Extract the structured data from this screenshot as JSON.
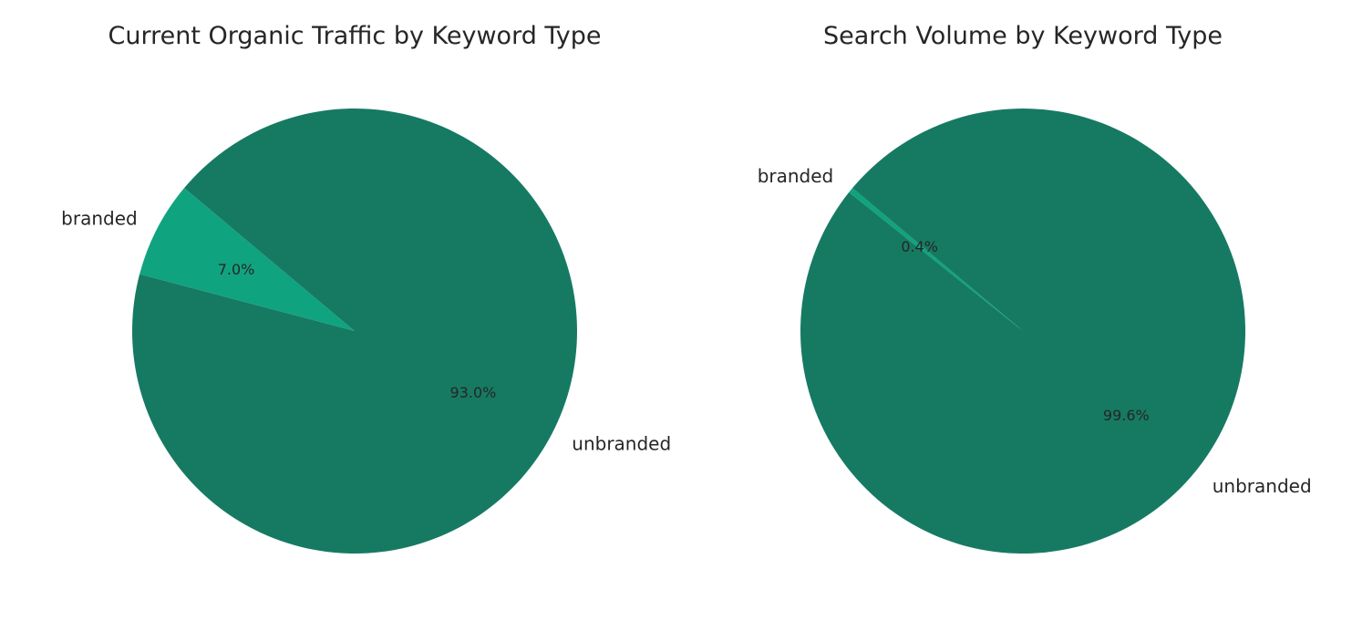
{
  "chart_data": [
    {
      "type": "pie",
      "title": "Current Organic Traffic by Keyword Type",
      "categories": [
        "branded",
        "unbranded"
      ],
      "values": [
        7.0,
        93.0
      ],
      "value_labels": [
        "7.0%",
        "93.0%"
      ],
      "colors": [
        "#10a37f",
        "#167a63"
      ],
      "start_angle_deg": 140,
      "counterclockwise": true,
      "legend": "none"
    },
    {
      "type": "pie",
      "title": "Search Volume by Keyword Type",
      "categories": [
        "branded",
        "unbranded"
      ],
      "values": [
        0.4,
        99.6
      ],
      "value_labels": [
        "0.4%",
        "99.6%"
      ],
      "colors": [
        "#10a37f",
        "#167a63"
      ],
      "start_angle_deg": 140,
      "counterclockwise": true,
      "legend": "none"
    }
  ]
}
